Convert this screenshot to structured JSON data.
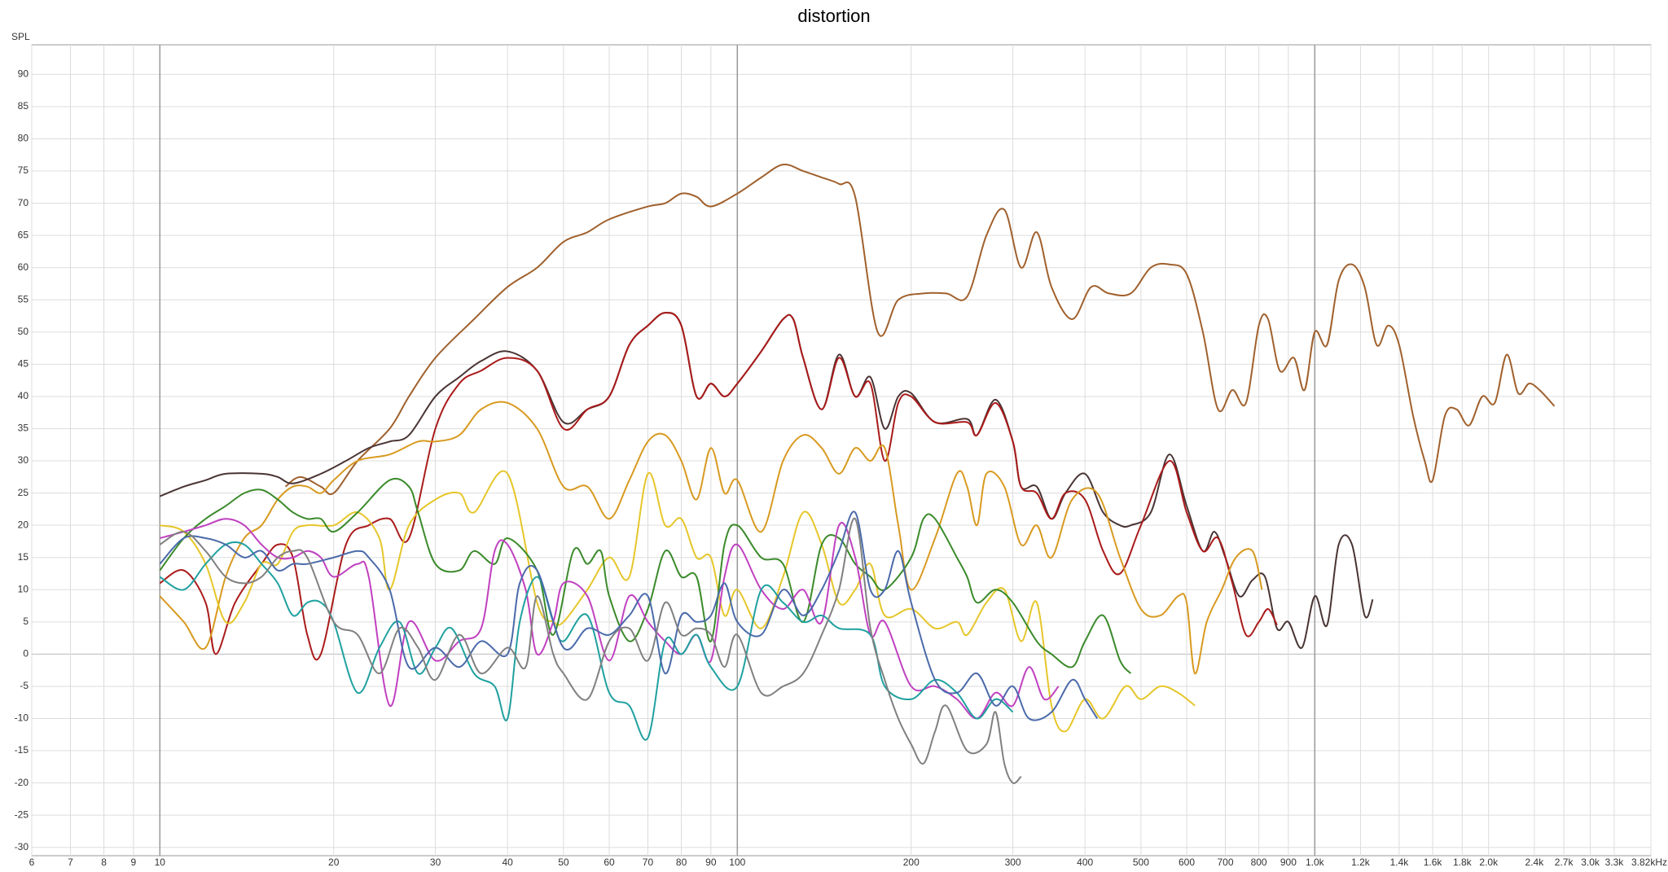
{
  "chart_data": {
    "type": "line",
    "title": "distortion",
    "y_label": "SPL",
    "xscale": "log",
    "grid": true,
    "xlim": [
      6,
      3820
    ],
    "ylim": [
      -31.3,
      94.6
    ],
    "xticks": [
      6,
      7,
      8,
      9,
      10,
      20,
      30,
      40,
      50,
      60,
      70,
      80,
      90,
      100,
      200,
      300,
      400,
      500,
      600,
      700,
      800,
      900,
      {
        "value": 1000,
        "label": "1.0k"
      },
      {
        "value": 1200,
        "label": "1.2k"
      },
      {
        "value": 1400,
        "label": "1.4k"
      },
      {
        "value": 1600,
        "label": "1.6k"
      },
      {
        "value": 1800,
        "label": "1.8k"
      },
      {
        "value": 2000,
        "label": "2.0k"
      },
      {
        "value": 2400,
        "label": "2.4k"
      },
      {
        "value": 2700,
        "label": "2.7k"
      },
      {
        "value": 3000,
        "label": "3.0k"
      },
      {
        "value": 3300,
        "label": "3.3k"
      },
      {
        "value": 3820,
        "label": "3.82kHz"
      }
    ],
    "yticks": [
      -30,
      -25,
      -20,
      -15,
      -10,
      -5,
      0,
      5,
      10,
      15,
      20,
      25,
      30,
      35,
      40,
      45,
      50,
      55,
      60,
      65,
      70,
      75,
      80,
      85,
      90
    ],
    "series": [
      {
        "color": "#a0602c",
        "x": [
          16.5,
          17.5,
          19,
          20,
          22,
          25,
          27,
          30,
          35,
          40,
          45,
          50,
          55,
          60,
          70,
          75,
          80,
          85,
          90,
          100,
          110,
          120,
          130,
          140,
          150,
          160,
          175,
          190,
          210,
          230,
          250,
          270,
          290,
          310,
          330,
          350,
          380,
          410,
          440,
          480,
          520,
          560,
          600,
          640,
          680,
          720,
          760,
          800,
          830,
          870,
          920,
          960,
          1000,
          1050,
          1100,
          1160,
          1220,
          1280,
          1340,
          1400,
          1480,
          1550,
          1600,
          1680,
          1760,
          1850,
          1950,
          2050,
          2150,
          2250,
          2350,
          2450,
          2600
        ],
        "values": [
          26,
          27.5,
          26,
          25,
          30,
          35,
          40,
          46,
          52,
          57,
          60,
          64,
          65.5,
          67.5,
          69.5,
          70,
          71.5,
          71,
          69.5,
          71.5,
          74,
          76,
          75,
          74,
          73,
          71,
          50,
          55,
          56,
          56,
          55.5,
          65,
          69,
          60,
          65.5,
          57,
          52,
          57,
          56,
          56,
          60,
          60.5,
          59,
          50,
          38,
          41,
          39,
          51,
          52,
          44,
          46,
          41,
          50,
          48,
          58,
          60.5,
          57,
          48,
          51,
          48,
          37,
          30,
          27,
          37,
          38,
          35.5,
          40,
          39,
          46.5,
          40.5,
          42,
          41,
          38.5
        ]
      },
      {
        "color": "#4a3434",
        "x": [
          10,
          11,
          12,
          13,
          15,
          16,
          17,
          19,
          21,
          23,
          25,
          27,
          30,
          33,
          36,
          40,
          45,
          50,
          55,
          60,
          65,
          70,
          75,
          80,
          85,
          90,
          95,
          100,
          110,
          120,
          125,
          130,
          140,
          150,
          160,
          170,
          180,
          190,
          200,
          220,
          250,
          260,
          280,
          300,
          310,
          330,
          350,
          370,
          400,
          430,
          460,
          480,
          520,
          560,
          600,
          640,
          670,
          700,
          740,
          780,
          820,
          860,
          900,
          950,
          1000,
          1050,
          1100,
          1160,
          1220,
          1260
        ],
        "values": [
          24.5,
          26,
          27,
          28,
          28,
          27.5,
          26.5,
          28,
          30,
          32,
          33,
          34,
          40,
          43,
          45.5,
          47,
          44,
          36,
          38,
          40,
          48,
          51,
          53,
          51,
          40,
          42,
          40,
          42,
          47,
          52,
          52,
          46,
          38,
          46.5,
          40,
          43,
          35,
          40,
          40.5,
          36,
          36.5,
          34,
          39.5,
          33,
          26,
          26,
          21,
          25,
          28,
          22,
          20,
          20,
          22,
          31,
          23,
          16,
          19,
          15,
          9,
          11.5,
          12,
          4,
          5,
          1,
          9,
          4.5,
          17,
          17,
          6,
          8.5
        ]
      },
      {
        "color": "#aa1a1a",
        "x": [
          10,
          11,
          12,
          12.5,
          13.5,
          15,
          16,
          17,
          18,
          19,
          21,
          23,
          25,
          27,
          30,
          33,
          36,
          40,
          45,
          50,
          55,
          60,
          65,
          70,
          75,
          80,
          85,
          90,
          95,
          100,
          110,
          120,
          125,
          130,
          140,
          150,
          160,
          170,
          180,
          190,
          200,
          220,
          250,
          260,
          280,
          300,
          310,
          330,
          350,
          370,
          400,
          430,
          460,
          500,
          560,
          600,
          640,
          680,
          720,
          760,
          800,
          830,
          860
        ],
        "values": [
          11,
          13,
          8,
          0,
          8,
          14,
          17,
          15,
          3,
          0,
          17,
          20,
          21,
          18,
          35,
          42,
          44,
          46,
          44,
          35,
          38,
          40,
          48,
          51,
          53,
          51,
          40,
          42,
          40,
          42,
          47,
          52,
          52,
          46,
          38,
          46,
          40,
          42,
          30,
          39,
          40,
          36,
          36,
          34,
          39,
          33,
          26,
          25,
          21,
          25,
          24,
          16,
          12.5,
          20,
          30,
          22,
          16,
          18,
          11,
          3,
          5,
          7,
          4.5
        ]
      },
      {
        "color": "#d89a20",
        "x": [
          10,
          11,
          12,
          13,
          14,
          15,
          16,
          17,
          18,
          19,
          20,
          22,
          25,
          28,
          30,
          33,
          36,
          40,
          45,
          50,
          55,
          60,
          65,
          70,
          75,
          80,
          85,
          90,
          95,
          100,
          110,
          120,
          130,
          140,
          150,
          160,
          170,
          180,
          190,
          200,
          220,
          240,
          250,
          260,
          270,
          290,
          310,
          330,
          350,
          380,
          420,
          460,
          500,
          540,
          580,
          600,
          620,
          650,
          690,
          730,
          780,
          810
        ],
        "values": [
          9,
          5,
          1,
          12,
          18,
          20,
          24,
          26,
          26,
          25,
          27,
          30,
          31,
          33,
          33,
          34,
          38,
          39,
          35,
          26,
          26,
          21,
          27,
          33,
          34,
          30,
          24,
          32,
          25,
          27,
          19,
          30,
          34,
          32,
          28,
          32,
          30,
          32,
          20,
          10,
          18,
          28,
          26,
          20,
          28,
          26,
          17,
          20,
          15,
          24,
          25,
          15,
          7,
          6,
          9,
          8,
          -3,
          5,
          10,
          15,
          16,
          10
        ]
      },
      {
        "color": "#e6c62a",
        "x": [
          10,
          11,
          12,
          13,
          14,
          15,
          16,
          17,
          18,
          20,
          22,
          24,
          25,
          27,
          30,
          33,
          35,
          40,
          45,
          48,
          50,
          55,
          60,
          65,
          70,
          75,
          80,
          85,
          90,
          95,
          100,
          110,
          120,
          130,
          140,
          150,
          160,
          170,
          180,
          200,
          220,
          240,
          250,
          270,
          290,
          310,
          330,
          350,
          370,
          400,
          430,
          470,
          500,
          540,
          580,
          620
        ],
        "values": [
          20,
          19,
          14,
          5,
          8,
          14,
          14,
          19,
          20,
          20,
          22,
          18,
          10,
          20,
          24,
          25,
          22,
          28,
          8,
          5,
          5,
          10,
          15,
          12,
          28,
          20,
          21,
          15,
          15,
          6,
          10,
          4,
          12,
          22,
          17,
          8,
          10,
          14,
          6,
          7,
          4,
          5,
          3,
          8,
          10,
          2,
          8,
          -8,
          -12,
          -7,
          -10,
          -5,
          -7,
          -5,
          -6,
          -8
        ]
      },
      {
        "color": "#3a8a2a",
        "x": [
          10,
          11,
          12,
          13,
          14,
          15,
          16,
          17,
          18,
          19,
          20,
          22,
          25,
          27,
          28,
          30,
          33,
          35,
          38,
          40,
          45,
          48,
          52,
          55,
          58,
          60,
          65,
          70,
          75,
          80,
          85,
          90,
          95,
          100,
          110,
          120,
          130,
          140,
          150,
          160,
          170,
          180,
          200,
          210,
          220,
          240,
          250,
          260,
          280,
          300,
          330,
          350,
          380,
          400,
          430,
          460,
          480
        ],
        "values": [
          13,
          18,
          21,
          23,
          25,
          25.5,
          24,
          22,
          21,
          21,
          19,
          22,
          27,
          26,
          22,
          14,
          13,
          16,
          14,
          18,
          13,
          3,
          16,
          14,
          16,
          9,
          2,
          7,
          16,
          12,
          12,
          2,
          17,
          20,
          15,
          14,
          5,
          17,
          18,
          14,
          12,
          10,
          15,
          21,
          21,
          15,
          12,
          8,
          10,
          8,
          2,
          0,
          -2,
          2,
          6,
          -1,
          -3
        ]
      },
      {
        "color": "#c040c0",
        "x": [
          10,
          11,
          12,
          13,
          14,
          15,
          16,
          17,
          18,
          19,
          20,
          22,
          23,
          25,
          27,
          30,
          33,
          36,
          38,
          40,
          43,
          45,
          48,
          50,
          55,
          60,
          65,
          70,
          75,
          80,
          85,
          90,
          95,
          100,
          110,
          120,
          130,
          140,
          150,
          160,
          170,
          180,
          200,
          220,
          240,
          260,
          280,
          300,
          320,
          340,
          360
        ],
        "values": [
          18,
          19,
          20,
          21,
          20,
          17,
          15,
          15,
          16,
          15,
          12,
          14,
          12,
          -8,
          5,
          -1,
          2,
          4,
          16,
          17,
          10,
          0,
          5,
          11,
          9,
          -1,
          9,
          5,
          2,
          0,
          3,
          -1,
          12,
          17,
          10,
          7,
          10,
          5,
          20,
          15,
          3,
          5,
          -5,
          -5,
          -7,
          -10,
          -6,
          -8,
          -2,
          -7,
          -5
        ]
      },
      {
        "color": "#20a0a0",
        "x": [
          10,
          11,
          12,
          13,
          14,
          15,
          16,
          17,
          18,
          19,
          20,
          22,
          24,
          26,
          28,
          30,
          32,
          35,
          38,
          40,
          42,
          45,
          48,
          50,
          55,
          60,
          65,
          70,
          75,
          80,
          85,
          90,
          100,
          110,
          120,
          130,
          140,
          150,
          170,
          180,
          200,
          220,
          240,
          260,
          280,
          300
        ],
        "values": [
          12,
          10,
          14,
          17,
          17,
          14,
          11,
          6,
          8,
          8,
          5,
          -6,
          1,
          5,
          -3,
          1,
          4,
          -3,
          -5,
          -10,
          5,
          12,
          5,
          2,
          6,
          -6,
          -8,
          -13,
          2,
          0,
          3,
          -2,
          -5,
          10,
          8,
          5,
          6,
          4,
          3,
          -5,
          -7,
          -4,
          -6,
          -10,
          -7,
          -9
        ]
      },
      {
        "color": "#4a6aaa",
        "x": [
          10,
          11,
          12,
          13,
          14,
          15,
          16,
          17,
          18,
          20,
          22,
          23,
          25,
          27,
          30,
          33,
          36,
          40,
          42,
          45,
          50,
          55,
          60,
          65,
          70,
          75,
          80,
          85,
          90,
          95,
          100,
          110,
          120,
          130,
          140,
          150,
          160,
          170,
          180,
          190,
          200,
          220,
          240,
          260,
          280,
          300,
          320,
          350,
          380,
          400,
          420
        ],
        "values": [
          14,
          18,
          18,
          17,
          15,
          16,
          13,
          14,
          14,
          15,
          16,
          15,
          10,
          -2,
          1,
          -2,
          2,
          0,
          11,
          13,
          1,
          4,
          3,
          6,
          9,
          -3,
          6,
          5,
          6,
          11,
          5,
          3,
          10,
          6,
          10,
          16,
          22,
          10,
          10,
          16,
          8,
          -4,
          -6,
          -3,
          -8,
          -5,
          -10,
          -9,
          -4,
          -7,
          -10
        ]
      },
      {
        "color": "#808080",
        "x": [
          10,
          11,
          12,
          13,
          14,
          15,
          16,
          17,
          18,
          20,
          22,
          24,
          26,
          28,
          30,
          33,
          36,
          40,
          43,
          45,
          48,
          50,
          55,
          60,
          65,
          70,
          75,
          80,
          85,
          90,
          95,
          100,
          110,
          120,
          130,
          140,
          150,
          160,
          170,
          180,
          190,
          200,
          210,
          220,
          230,
          250,
          270,
          280,
          290,
          300,
          310
        ],
        "values": [
          17,
          19,
          16,
          12,
          11,
          12,
          15,
          16,
          15,
          5,
          3,
          -3,
          4,
          1,
          -4,
          3,
          -3,
          1,
          -2,
          9,
          0,
          -3,
          -7,
          2,
          4,
          -1,
          8,
          3,
          4,
          3,
          -2,
          3,
          -6,
          -5,
          -3,
          3,
          10,
          21,
          4,
          -4,
          -10,
          -14,
          -17,
          -12,
          -8,
          -15,
          -14,
          -9,
          -17,
          -20,
          -19
        ]
      }
    ]
  }
}
